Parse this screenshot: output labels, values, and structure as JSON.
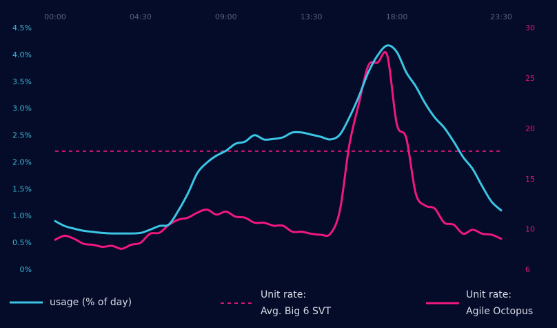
{
  "chart_data": {
    "type": "line",
    "categories": [
      "00:00",
      null,
      null,
      null,
      null,
      null,
      null,
      null,
      null,
      "04:30",
      null,
      null,
      null,
      null,
      null,
      null,
      null,
      null,
      "09:00",
      null,
      null,
      null,
      null,
      null,
      null,
      null,
      null,
      "13:30",
      null,
      null,
      null,
      null,
      null,
      null,
      null,
      null,
      "18:00",
      null,
      null,
      null,
      null,
      null,
      null,
      null,
      null,
      null,
      null,
      "23:30"
    ],
    "ylim": [
      0,
      4.5
    ],
    "yticks": [
      {
        "value": 0,
        "label": "0%"
      },
      {
        "value": 0.5,
        "label": "0.5%"
      },
      {
        "value": 1,
        "label": "1.0%"
      },
      {
        "value": 1.5,
        "label": "1.5%"
      },
      {
        "value": 2,
        "label": "2.0%"
      },
      {
        "value": 2.5,
        "label": "2.5%"
      },
      {
        "value": 3,
        "label": "3.0%"
      },
      {
        "value": 3.5,
        "label": "3.5%"
      },
      {
        "value": 4,
        "label": "4.0%"
      },
      {
        "value": 4.5,
        "label": "4.5%"
      }
    ],
    "y2lim": [
      6,
      30
    ],
    "y2ticks": [
      6,
      10,
      15,
      20,
      25,
      30
    ],
    "series": [
      {
        "name": "usage (% of day)",
        "color": "#3cc6e6",
        "style": "solid",
        "values": [
          0.91,
          0.82,
          0.77,
          0.73,
          0.71,
          0.69,
          0.68,
          0.68,
          0.68,
          0.69,
          0.75,
          0.82,
          0.85,
          1.11,
          1.43,
          1.81,
          2.0,
          2.13,
          2.22,
          2.35,
          2.39,
          2.51,
          2.43,
          2.44,
          2.47,
          2.56,
          2.56,
          2.52,
          2.48,
          2.43,
          2.52,
          2.84,
          3.23,
          3.68,
          4.0,
          4.18,
          4.06,
          3.68,
          3.42,
          3.1,
          2.84,
          2.65,
          2.39,
          2.1,
          1.88,
          1.56,
          1.27,
          1.11
        ]
      },
      {
        "name": "Unit rate:\nAvg. Big 6 SVT",
        "color": "#d6166f",
        "style": "dashed",
        "axis": "y2",
        "values": [
          17.8,
          17.8,
          17.8,
          17.8,
          17.8,
          17.8,
          17.8,
          17.8,
          17.8,
          17.8,
          17.8,
          17.8,
          17.8,
          17.8,
          17.8,
          17.8,
          17.8,
          17.8,
          17.8,
          17.8,
          17.8,
          17.8,
          17.8,
          17.8,
          17.8,
          17.8,
          17.8,
          17.8,
          17.8,
          17.8,
          17.8,
          17.8,
          17.8,
          17.8,
          17.8,
          17.8,
          17.8,
          17.8,
          17.8,
          17.8,
          17.8,
          17.8,
          17.8,
          17.8,
          17.8,
          17.8,
          17.8,
          17.8
        ]
      },
      {
        "name": "Unit rate:\nAgile Octopus",
        "color": "#f0187e",
        "style": "solid",
        "axis": "y2",
        "values": [
          9.0,
          9.4,
          9.1,
          8.6,
          8.5,
          8.3,
          8.4,
          8.1,
          8.5,
          8.7,
          9.6,
          9.7,
          10.5,
          11.0,
          11.2,
          11.7,
          12.0,
          11.5,
          11.8,
          11.3,
          11.2,
          10.7,
          10.7,
          10.4,
          10.4,
          9.8,
          9.8,
          9.6,
          9.5,
          9.6,
          11.9,
          18.4,
          22.5,
          26.3,
          26.6,
          27.3,
          20.5,
          19.1,
          13.6,
          12.4,
          12.1,
          10.7,
          10.5,
          9.6,
          10.0,
          9.6,
          9.5,
          9.1
        ]
      }
    ]
  }
}
